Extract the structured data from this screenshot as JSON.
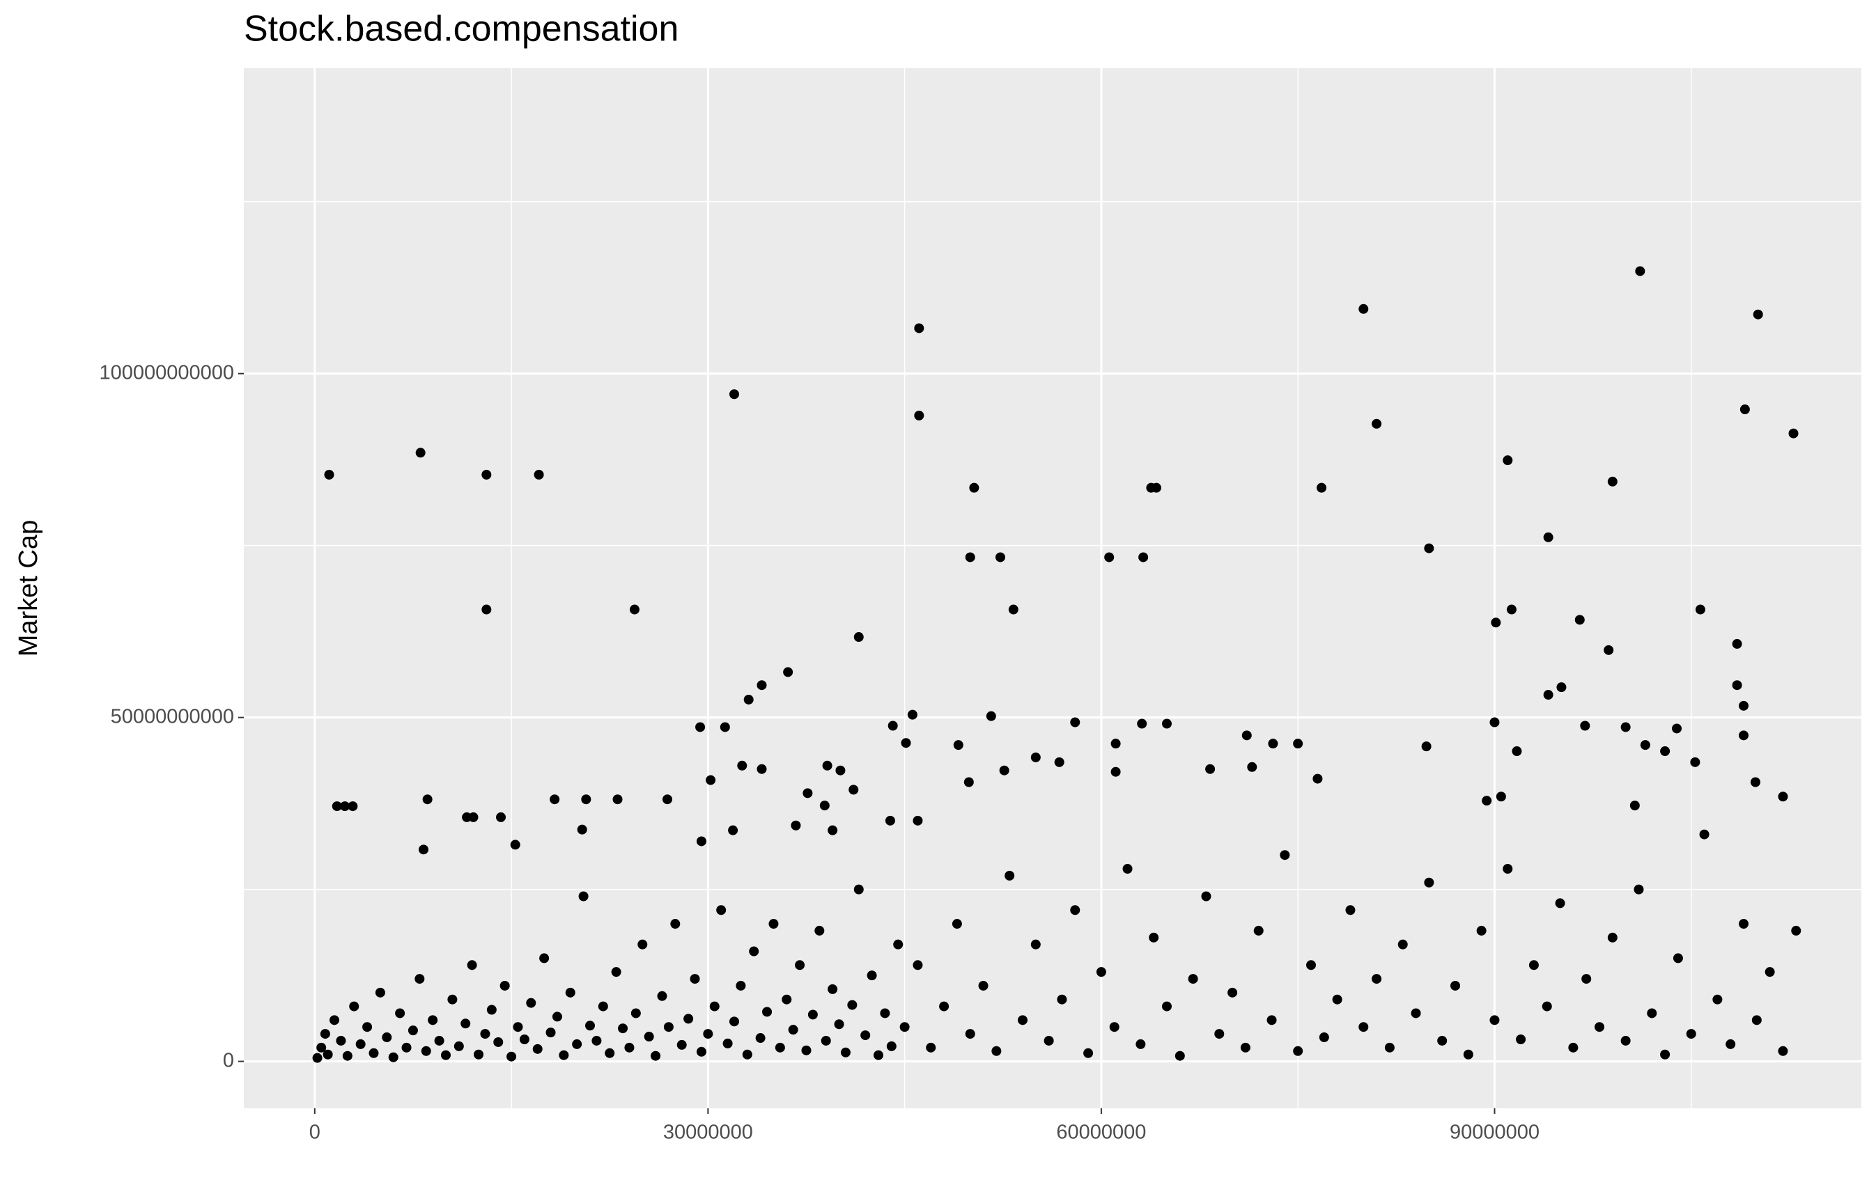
{
  "chart_data": {
    "type": "scatter",
    "title": "Stock.based.compensation",
    "ylabel": "Market Cap",
    "color": "#000000",
    "grid": true,
    "xlim": [
      -5410000.0,
      117980000.0
    ],
    "ylim": [
      -6820000000.0,
      144400000000.0
    ],
    "xticks": [
      0,
      30000000,
      60000000,
      90000000
    ],
    "yticks": [
      0,
      50000000000,
      100000000000
    ],
    "x": [
      1100000.0,
      8070000.0,
      13100000.0,
      13100000.0,
      17100000.0,
      24400000.0,
      32000000.0,
      46100000.0,
      46100000.0,
      50300000.0,
      50000000.0,
      52300000.0,
      53300000.0,
      41500000.0,
      36100000.0,
      34100000.0,
      33100000.0,
      60600000.0,
      63200000.0,
      63800000.0,
      64200000.0,
      80000000.0,
      81000000.0,
      76800000.0,
      85000000.0,
      91000000.0,
      90100000.0,
      91300000.0,
      94100000.0,
      96500000.0,
      99000000.0,
      98700000.0,
      101100000.0,
      110100000.0,
      109100000.0,
      112800000.0,
      105700000.0,
      108500000.0,
      108500000.0,
      109000000.0,
      109000000.0,
      95100000.0,
      94100000.0,
      29400000.0,
      31300000.0,
      30200000.0,
      32600000.0,
      34100000.0,
      45600000.0,
      44100000.0,
      45100000.0,
      49100000.0,
      51600000.0,
      58000000.0,
      61100000.0,
      63100000.0,
      65000000.0,
      71100000.0,
      73100000.0,
      75000000.0,
      84800000.0,
      90000000.0,
      96900000.0,
      100000000.0,
      103900000.0,
      101500000.0,
      91700000.0,
      103000000.0,
      105300000.0,
      109900000.0,
      112000000.0,
      100700000.0,
      90500000.0,
      89400000.0,
      76500000.0,
      71500000.0,
      68300000.0,
      61100000.0,
      55000000.0,
      56800000.0,
      52600000.0,
      49900000.0,
      39100000.0,
      40100000.0,
      41100000.0,
      37600000.0,
      38900000.0,
      36700000.0,
      39500000.0,
      43900000.0,
      46000000.0,
      31900000.0,
      29500000.0,
      26900000.0,
      23100000.0,
      20700000.0,
      18300000.0,
      8600000.0,
      11600000.0,
      12100000.0,
      14200000.0,
      1700000.0,
      2300000.0,
      2900000.0,
      15300000.0,
      20400000.0,
      8300000.0,
      200000.0,
      500000.0,
      800000.0,
      1000000.0,
      1500000.0,
      2000000.0,
      2500000.0,
      3000000.0,
      3500000.0,
      4000000.0,
      4500000.0,
      5000000.0,
      5500000.0,
      6000000.0,
      6500000.0,
      7000000.0,
      7500000.0,
      8000000.0,
      8500000.0,
      9000000.0,
      9500000.0,
      10000000.0,
      10500000.0,
      11000000.0,
      11500000.0,
      12000000.0,
      12500000.0,
      13000000.0,
      13500000.0,
      14000000.0,
      14500000.0,
      15000000.0,
      15500000.0,
      16000000.0,
      16500000.0,
      17000000.0,
      17500000.0,
      18000000.0,
      18500000.0,
      19000000.0,
      19500000.0,
      20000000.0,
      20500000.0,
      21000000.0,
      21500000.0,
      22000000.0,
      22500000.0,
      23000000.0,
      23500000.0,
      24000000.0,
      24500000.0,
      25000000.0,
      25500000.0,
      26000000.0,
      26500000.0,
      27000000.0,
      27500000.0,
      28000000.0,
      28500000.0,
      29000000.0,
      29500000.0,
      30000000.0,
      30500000.0,
      31000000.0,
      31500000.0,
      32000000.0,
      32500000.0,
      33000000.0,
      33500000.0,
      34000000.0,
      34500000.0,
      35000000.0,
      35500000.0,
      36000000.0,
      36500000.0,
      37000000.0,
      37500000.0,
      38000000.0,
      38500000.0,
      39000000.0,
      39500000.0,
      40000000.0,
      40500000.0,
      41000000.0,
      41500000.0,
      42000000.0,
      42500000.0,
      43000000.0,
      43500000.0,
      44000000.0,
      44500000.0,
      45000000.0,
      46000000.0,
      47000000.0,
      48000000.0,
      49000000.0,
      50000000.0,
      51000000.0,
      52000000.0,
      53000000.0,
      54000000.0,
      55000000.0,
      56000000.0,
      57000000.0,
      58000000.0,
      59000000.0,
      60000000.0,
      61000000.0,
      62000000.0,
      63000000.0,
      64000000.0,
      65000000.0,
      66000000.0,
      67000000.0,
      68000000.0,
      69000000.0,
      70000000.0,
      71000000.0,
      72000000.0,
      73000000.0,
      74000000.0,
      75000000.0,
      76000000.0,
      77000000.0,
      78000000.0,
      79000000.0,
      80000000.0,
      81000000.0,
      82000000.0,
      83000000.0,
      84000000.0,
      85000000.0,
      86000000.0,
      87000000.0,
      88000000.0,
      89000000.0,
      90000000.0,
      91000000.0,
      92000000.0,
      93000000.0,
      94000000.0,
      95000000.0,
      96000000.0,
      97000000.0,
      98000000.0,
      99000000.0,
      100000000.0,
      101000000.0,
      102000000.0,
      103000000.0,
      104000000.0,
      105000000.0,
      106000000.0,
      107000000.0,
      108000000.0,
      109000000.0,
      110000000.0,
      111000000.0,
      112000000.0,
      113000000.0
    ],
    "values": [
      85300000000.0,
      88500000000.0,
      85300000000.0,
      65700000000.0,
      85300000000.0,
      65700000000.0,
      97000000000.0,
      106600000000.0,
      93900000000.0,
      83400000000.0,
      73300000000.0,
      73300000000.0,
      65700000000.0,
      61700000000.0,
      56600000000.0,
      54700000000.0,
      52600000000.0,
      73300000000.0,
      73300000000.0,
      83400000000.0,
      83400000000.0,
      109400000000.0,
      92700000000.0,
      83400000000.0,
      74600000000.0,
      87400000000.0,
      63800000000.0,
      65700000000.0,
      76200000000.0,
      64200000000.0,
      84300000000.0,
      59800000000.0,
      114900000000.0,
      108600000000.0,
      94800000000.0,
      91300000000.0,
      65700000000.0,
      60700000000.0,
      54700000000.0,
      51700000000.0,
      47400000000.0,
      54400000000.0,
      53300000000.0,
      48600000000.0,
      48600000000.0,
      40900000000.0,
      43000000000.0,
      42500000000.0,
      50400000000.0,
      48800000000.0,
      46300000000.0,
      46000000000.0,
      50200000000.0,
      49300000000.0,
      46200000000.0,
      49100000000.0,
      49100000000.0,
      47400000000.0,
      46200000000.0,
      46200000000.0,
      45800000000.0,
      49300000000.0,
      48800000000.0,
      48600000000.0,
      48400000000.0,
      46000000000.0,
      45100000000.0,
      45100000000.0,
      43500000000.0,
      40600000000.0,
      38500000000.0,
      37200000000.0,
      38500000000.0,
      37900000000.0,
      41100000000.0,
      42800000000.0,
      42500000000.0,
      42100000000.0,
      44200000000.0,
      43500000000.0,
      42300000000.0,
      40600000000.0,
      43000000000.0,
      42300000000.0,
      39500000000.0,
      39000000000.0,
      37200000000.0,
      34300000000.0,
      33600000000.0,
      35000000000.0,
      35000000000.0,
      33600000000.0,
      32000000000.0,
      38100000000.0,
      38100000000.0,
      38100000000.0,
      38100000000.0,
      38100000000.0,
      35500000000.0,
      35500000000.0,
      35500000000.0,
      37100000000.0,
      37100000000.0,
      37100000000.0,
      31500000000.0,
      33700000000.0,
      30800000000.0,
      500000000.0,
      2000000000.0,
      4000000000.0,
      1000000000.0,
      6000000000.0,
      3000000000.0,
      800000000.0,
      8000000000.0,
      2500000000.0,
      5000000000.0,
      1200000000.0,
      10000000000.0,
      3500000000.0,
      600000000.0,
      7000000000.0,
      2000000000.0,
      4500000000.0,
      12000000000.0,
      1500000000.0,
      6000000000.0,
      3000000000.0,
      900000000.0,
      9000000000.0,
      2200000000.0,
      5500000000.0,
      14000000000.0,
      1000000000.0,
      4000000000.0,
      7500000000.0,
      2800000000.0,
      11000000000.0,
      700000000.0,
      5000000000.0,
      3200000000.0,
      8500000000.0,
      1800000000.0,
      15000000000.0,
      4200000000.0,
      6500000000.0,
      900000000.0,
      10000000000.0,
      2500000000.0,
      24000000000.0,
      5200000000.0,
      3000000000.0,
      8000000000.0,
      1200000000.0,
      13000000000.0,
      4800000000.0,
      2000000000.0,
      7000000000.0,
      17000000000.0,
      3600000000.0,
      800000000.0,
      9500000000.0,
      5000000000.0,
      20000000000.0,
      2400000000.0,
      6200000000.0,
      12000000000.0,
      1400000000.0,
      4000000000.0,
      8000000000.0,
      22000000000.0,
      2600000000.0,
      5800000000.0,
      11000000000.0,
      1000000000.0,
      16000000000.0,
      3400000000.0,
      7200000000.0,
      20000000000.0,
      2000000000.0,
      9000000000.0,
      4600000000.0,
      14000000000.0,
      1600000000.0,
      6800000000.0,
      19000000000.0,
      3000000000.0,
      10500000000.0,
      5400000000.0,
      1300000000.0,
      8200000000.0,
      25000000000.0,
      3800000000.0,
      12500000000.0,
      900000000.0,
      7000000000.0,
      2200000000.0,
      17000000000.0,
      5000000000.0,
      14000000000.0,
      2000000000.0,
      8000000000.0,
      20000000000.0,
      4000000000.0,
      11000000000.0,
      1500000000.0,
      27000000000.0,
      6000000000.0,
      17000000000.0,
      3000000000.0,
      9000000000.0,
      22000000000.0,
      1200000000.0,
      13000000000.0,
      5000000000.0,
      28000000000.0,
      2500000000.0,
      18000000000.0,
      8000000000.0,
      800000000.0,
      12000000000.0,
      24000000000.0,
      4000000000.0,
      10000000000.0,
      2000000000.0,
      19000000000.0,
      6000000000.0,
      30000000000.0,
      1500000000.0,
      14000000000.0,
      3500000000.0,
      9000000000.0,
      22000000000.0,
      5000000000.0,
      12000000000.0,
      2000000000.0,
      17000000000.0,
      7000000000.0,
      26000000000.0,
      3000000000.0,
      11000000000.0,
      1000000000.0,
      19000000000.0,
      6000000000.0,
      28000000000.0,
      3200000000.0,
      14000000000.0,
      8000000000.0,
      23000000000.0,
      2000000000.0,
      12000000000.0,
      5000000000.0,
      18000000000.0,
      3000000000.0,
      25000000000.0,
      7000000000.0,
      1000000000.0,
      15000000000.0,
      4000000000.0,
      33000000000.0,
      9000000000.0,
      2500000000.0,
      20000000000.0,
      6000000000.0,
      13000000000.0,
      1500000000.0,
      19000000000.0
    ]
  }
}
